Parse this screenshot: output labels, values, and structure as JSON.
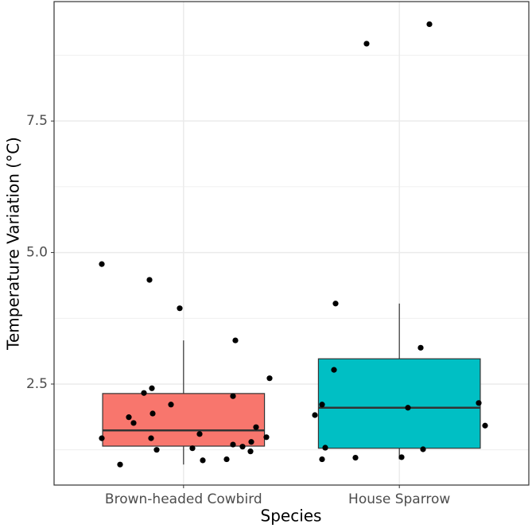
{
  "chart_data": {
    "type": "box",
    "x_label": "Species",
    "y_label": "Temperature Variation (°C)",
    "categories": [
      "Brown-headed Cowbird",
      "House Sparrow"
    ],
    "colors": [
      "#f8766d",
      "#00bfc4"
    ],
    "boxes": [
      {
        "whisker_low": 0.97,
        "q1": 1.32,
        "median": 1.62,
        "q3": 2.32,
        "whisker_high": 3.33
      },
      {
        "whisker_low": 1.07,
        "q1": 1.28,
        "median": 2.05,
        "q3": 2.98,
        "whisker_high": 4.03
      }
    ],
    "points": [
      [
        4.78,
        4.48,
        3.94,
        3.33,
        2.61,
        2.42,
        2.33,
        2.27,
        2.11,
        1.94,
        1.87,
        1.76,
        1.68,
        1.55,
        1.47,
        1.47,
        1.49,
        1.4,
        1.35,
        1.31,
        1.28,
        1.25,
        1.22,
        1.05,
        1.07,
        0.97
      ],
      [
        9.34,
        8.97,
        4.03,
        3.19,
        2.77,
        2.11,
        2.14,
        2.05,
        1.91,
        1.71,
        1.29,
        1.26,
        1.11,
        1.1,
        1.07
      ]
    ],
    "ylim": [
      0.58,
      9.77
    ],
    "yticks": [
      2.5,
      {
        "value": 5,
        "label": "5.0"
      },
      7.5
    ],
    "minor_yticks": [
      1.25,
      3.75,
      6.25,
      8.75
    ],
    "grid": true
  }
}
